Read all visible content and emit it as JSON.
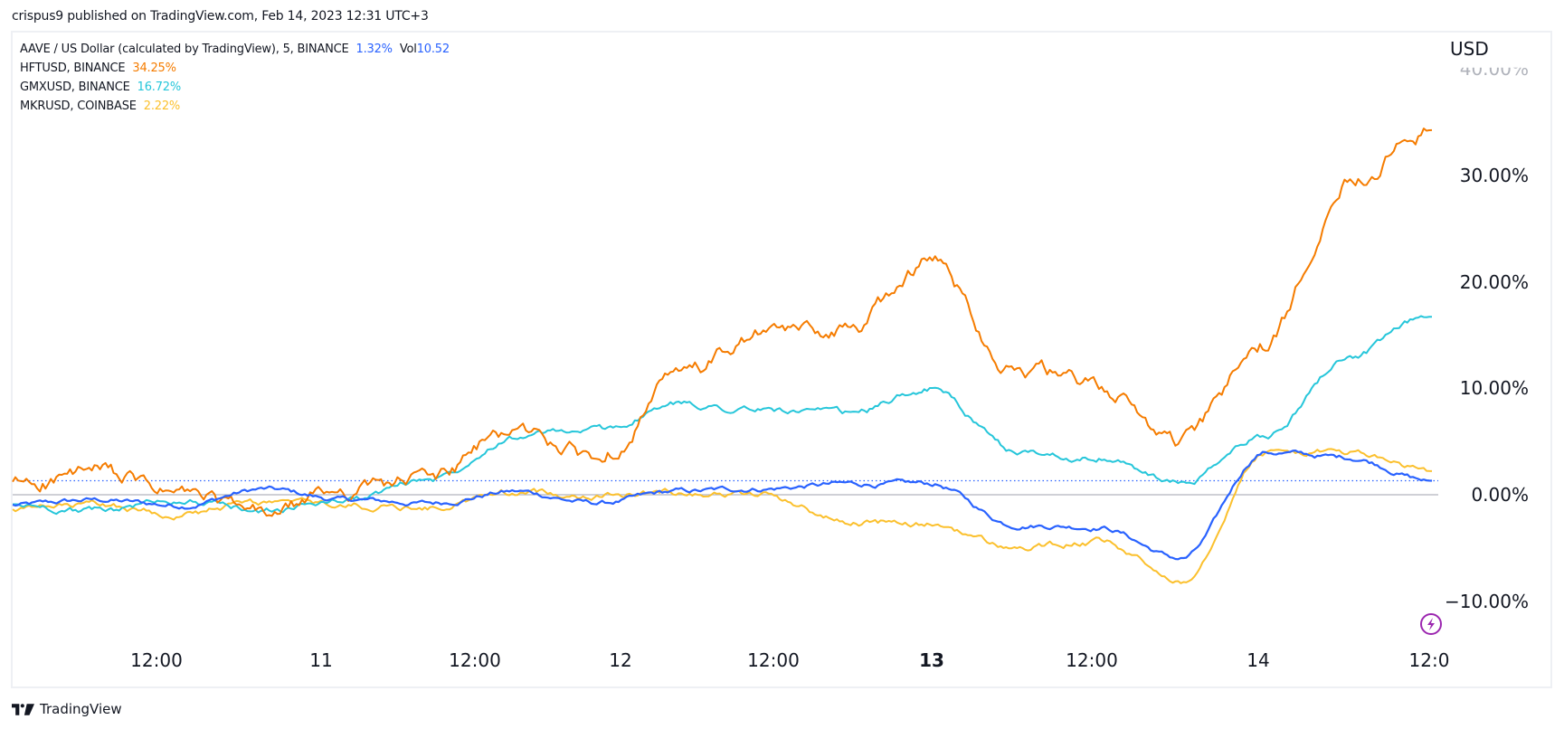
{
  "header": {
    "published": "crispus9 published on TradingView.com, Feb 14, 2023 12:31 UTC+3"
  },
  "legend": {
    "main": {
      "label": "AAVE / US Dollar (calculated by TradingView), 5, BINANCE",
      "value": "1.32%",
      "vol_label": "Vol",
      "vol_value": "10.52",
      "color": "#2962FF"
    },
    "items": [
      {
        "label": "HFTUSD, BINANCE",
        "value": "34.25%",
        "color": "#F57C00"
      },
      {
        "label": "GMXUSD, BINANCE",
        "value": "16.72%",
        "color": "#26C6DA"
      },
      {
        "label": "MKRUSD, COINBASE",
        "value": "2.22%",
        "color": "#FBC02D"
      }
    ]
  },
  "axis": {
    "currency": "USD",
    "y_ticks": [
      "40.00%",
      "30.00%",
      "20.00%",
      "10.00%",
      "0.00%",
      "−10.00%"
    ],
    "x_ticks": [
      {
        "label": "12:00",
        "bold": false
      },
      {
        "label": "11",
        "bold": false
      },
      {
        "label": "12:00",
        "bold": false
      },
      {
        "label": "12",
        "bold": false
      },
      {
        "label": "12:00",
        "bold": false
      },
      {
        "label": "13",
        "bold": true
      },
      {
        "label": "12:00",
        "bold": false
      },
      {
        "label": "14",
        "bold": false
      },
      {
        "label": "12:0",
        "bold": false
      }
    ]
  },
  "footer": {
    "brand": "TradingView"
  },
  "icons": {
    "bolt": "lightning-icon",
    "brand": "tradingview-logo-icon"
  },
  "chart_data": {
    "type": "line",
    "title": "AAVE / US Dollar (calculated by TradingView), 5, BINANCE",
    "xlabel": "",
    "ylabel": "USD (% change)",
    "ylim": [
      -13,
      41
    ],
    "grid": false,
    "legend_position": "top-left",
    "x": [
      "10 06:00",
      "10 12:00",
      "10 18:00",
      "11 00:00",
      "11 06:00",
      "11 12:00",
      "11 18:00",
      "12 00:00",
      "12 06:00",
      "12 12:00",
      "12 18:00",
      "13 00:00",
      "13 06:00",
      "13 12:00",
      "13 18:00",
      "14 00:00",
      "14 06:00",
      "14 12:00"
    ],
    "x_tick_labels": [
      "12:00",
      "11",
      "12:00",
      "12",
      "12:00",
      "13",
      "12:00",
      "14",
      "12:0"
    ],
    "reference_lines": [
      {
        "name": "zero",
        "value": 0,
        "style": "solid",
        "color": "#B2B5BE"
      },
      {
        "name": "AAVE last",
        "value": 1.32,
        "style": "dotted",
        "color": "#2962FF"
      }
    ],
    "series": [
      {
        "name": "AAVE / US Dollar",
        "color": "#2962FF",
        "last": 1.32,
        "values": [
          -1.0,
          -0.5,
          -1.0,
          0.5,
          -0.5,
          -0.8,
          0.3,
          -0.8,
          0.3,
          0.6,
          1.0,
          1.0,
          -2.8,
          -3.0,
          -6.0,
          4.0,
          3.5,
          1.32
        ]
      },
      {
        "name": "HFTUSD, BINANCE",
        "color": "#F57C00",
        "last": 34.25,
        "values": [
          1.0,
          2.0,
          0.0,
          -2.0,
          0.5,
          1.5,
          6.0,
          3.5,
          11.0,
          15.0,
          15.5,
          22.0,
          12.0,
          10.0,
          5.0,
          14.0,
          30.0,
          34.25
        ]
      },
      {
        "name": "GMXUSD, BINANCE",
        "color": "#26C6DA",
        "last": 16.72,
        "values": [
          -1.0,
          -1.5,
          -0.5,
          -1.5,
          -0.5,
          1.5,
          5.5,
          6.0,
          8.5,
          8.0,
          7.5,
          10.0,
          4.0,
          3.5,
          1.0,
          5.5,
          13.0,
          16.72
        ]
      },
      {
        "name": "MKRUSD, COINBASE",
        "color": "#FBC02D",
        "last": 2.22,
        "values": [
          -1.5,
          -1.0,
          -1.8,
          -0.8,
          -1.0,
          -1.2,
          0.2,
          0.0,
          0.3,
          0.0,
          -2.5,
          -2.8,
          -5.0,
          -4.5,
          -8.0,
          4.0,
          4.0,
          2.22
        ]
      }
    ]
  }
}
